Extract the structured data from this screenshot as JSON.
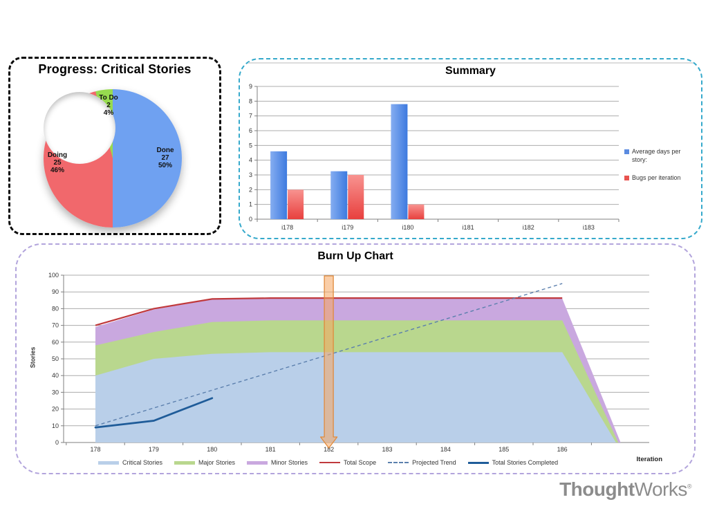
{
  "logo": {
    "bold": "Thought",
    "regular": "Works",
    "reg_mark": "®",
    "color": "#8C8C8C"
  },
  "panels": {
    "progress": {
      "border_color": "#0A0A0A"
    },
    "summary": {
      "border_color": "#35A9CB"
    },
    "burnup": {
      "border_color": "#B2A4DC"
    }
  },
  "chart_data": [
    {
      "id": "progress-donut",
      "type": "pie",
      "subtype": "doughnut",
      "title": "Progress: Critical Stories",
      "start_angle_deg": 0,
      "slices": [
        {
          "label": "Done",
          "value": 27,
          "pct": 50,
          "pct_label": "50%",
          "color": "#6FA1F1"
        },
        {
          "label": "Doing",
          "value": 25,
          "pct": 46,
          "pct_label": "46%",
          "color": "#F1686C"
        },
        {
          "label": "To Do",
          "value": 2,
          "pct": 4,
          "pct_label": "4%",
          "color": "#97DB4F"
        }
      ]
    },
    {
      "id": "summary-bars",
      "type": "bar",
      "title": "Summary",
      "categories": [
        "i178",
        "i179",
        "i180",
        "i181",
        "i182",
        "i183"
      ],
      "series": [
        {
          "name": "Average days per story:",
          "legend_color": "#5B8BE0",
          "color_light": "#85ADF1",
          "color_dark": "#3D7ADF",
          "gradient": "horizontal",
          "values": [
            4.6,
            3.25,
            7.8,
            null,
            null,
            null
          ]
        },
        {
          "name": "Bugs per iteration",
          "legend_color": "#E8534F",
          "color_light": "#F89390",
          "color_dark": "#E8403E",
          "gradient": "vertical",
          "values": [
            2,
            3,
            1,
            null,
            null,
            null
          ]
        }
      ],
      "ylim": [
        0,
        9
      ],
      "ytick_step": 1,
      "grid": true,
      "legend_position": "right"
    },
    {
      "id": "burnup",
      "type": "area",
      "subtype": "stacked-area-with-lines",
      "title": "Burn Up Chart",
      "xlabel": "Iteration",
      "ylabel": "Stories",
      "x": [
        178,
        179,
        180,
        181,
        182,
        183,
        184,
        185,
        186
      ],
      "ylim": [
        0,
        100
      ],
      "ytick_step": 10,
      "grid": true,
      "legend_position": "bottom",
      "series": [
        {
          "name": "Critical Stories",
          "kind": "area-band",
          "swatch": "thick",
          "color": "#B9CFE9",
          "top": [
            40,
            50,
            53,
            54,
            54,
            54,
            54,
            54,
            54
          ],
          "drop_end_x": 186.92
        },
        {
          "name": "Major Stories",
          "kind": "area-band",
          "swatch": "thick",
          "color": "#B9D78E",
          "top": [
            58,
            66,
            72,
            73,
            73,
            73,
            73,
            73,
            73
          ],
          "drop_end_x": 186.96
        },
        {
          "name": "Minor Stories",
          "kind": "area-band",
          "swatch": "thick",
          "color": "#C9A8DF",
          "top": [
            69,
            79.5,
            85.5,
            86,
            86,
            86,
            86,
            86,
            86
          ],
          "drop_end_x": 187.0
        },
        {
          "name": "Total Scope",
          "kind": "line",
          "swatch": "thin",
          "color": "#C0393C",
          "y": [
            70,
            80,
            85.8,
            86.3,
            86.3,
            86.3,
            86.3,
            86.3,
            86.3
          ]
        },
        {
          "name": "Projected Trend",
          "kind": "dashed-line",
          "swatch": "dashed",
          "color": "#5B7FAD",
          "points": [
            [
              178,
              10
            ],
            [
              186,
              95
            ]
          ]
        },
        {
          "name": "Total Stories Completed",
          "kind": "line-thick",
          "swatch": "medium",
          "color": "#1F5C99",
          "points": [
            [
              178,
              9
            ],
            [
              179,
              13
            ],
            [
              180,
              26.5
            ]
          ]
        }
      ],
      "highlight": {
        "type": "down-arrow",
        "x": 182,
        "fill": "rgba(245,166,97,0.55)",
        "stroke": "#E08A3C"
      }
    }
  ]
}
